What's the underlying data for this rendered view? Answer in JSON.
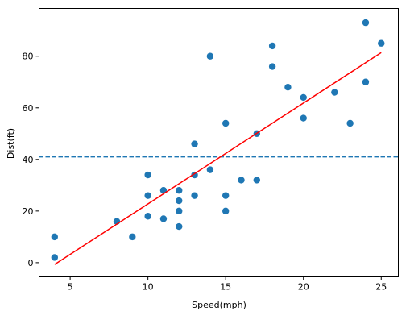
{
  "chart_data": {
    "type": "scatter",
    "title": "",
    "xlabel": "Speed(mph)",
    "ylabel": "Dist(ft)",
    "xlim": [
      3,
      26.1
    ],
    "ylim": [
      -5.5,
      98.5
    ],
    "xticks": [
      5,
      10,
      15,
      20,
      25
    ],
    "yticks": [
      0,
      20,
      40,
      60,
      80
    ],
    "grid": false,
    "points": [
      [
        4,
        2
      ],
      [
        4,
        10
      ],
      [
        8,
        16
      ],
      [
        9,
        10
      ],
      [
        10,
        18
      ],
      [
        10,
        26
      ],
      [
        10,
        34
      ],
      [
        11,
        17
      ],
      [
        11,
        28
      ],
      [
        12,
        14
      ],
      [
        12,
        20
      ],
      [
        12,
        24
      ],
      [
        12,
        28
      ],
      [
        13,
        26
      ],
      [
        13,
        34
      ],
      [
        13,
        46
      ],
      [
        14,
        36
      ],
      [
        14,
        80
      ],
      [
        15,
        20
      ],
      [
        15,
        26
      ],
      [
        15,
        54
      ],
      [
        16,
        32
      ],
      [
        17,
        32
      ],
      [
        17,
        50
      ],
      [
        18,
        76
      ],
      [
        18,
        84
      ],
      [
        19,
        68
      ],
      [
        20,
        56
      ],
      [
        20,
        64
      ],
      [
        22,
        66
      ],
      [
        23,
        54
      ],
      [
        24,
        70
      ],
      [
        24,
        93
      ],
      [
        25,
        85
      ]
    ],
    "fit_line": {
      "x": [
        4,
        25
      ],
      "y": [
        -0.7,
        81.4
      ],
      "color": "#ff0000"
    },
    "mean_line": {
      "y": 41,
      "style": "dashed",
      "color": "#1f77b4"
    },
    "point_color": "#1f77b4"
  }
}
